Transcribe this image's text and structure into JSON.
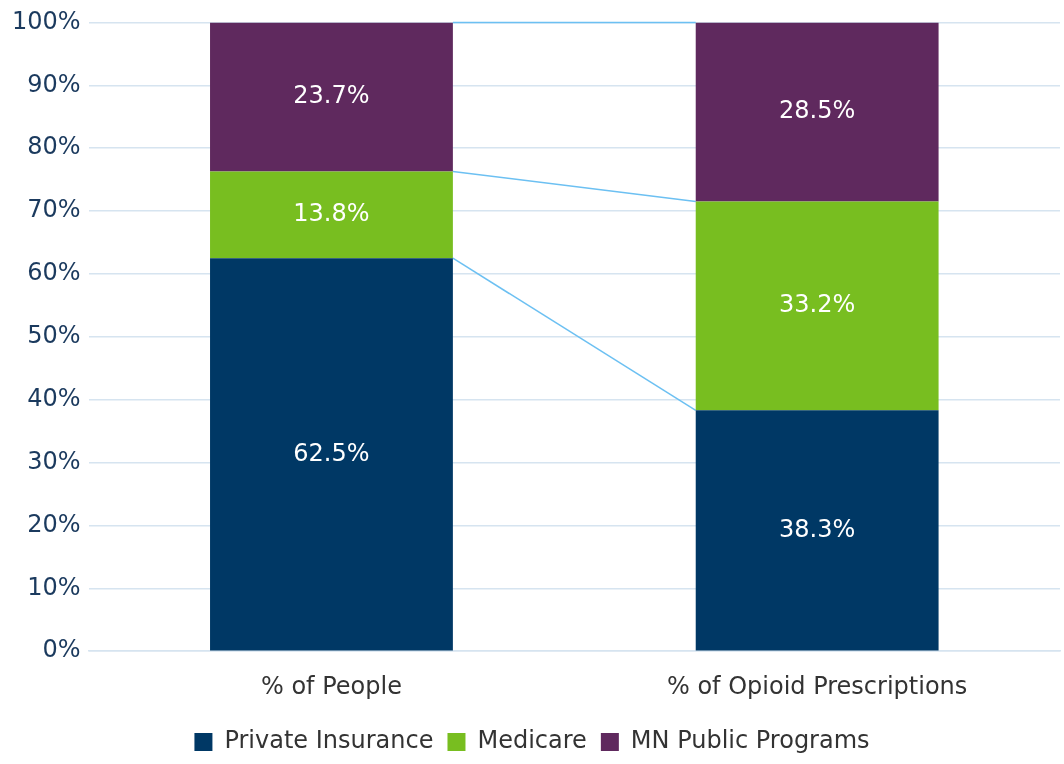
{
  "chart_data": {
    "type": "bar",
    "stacked": true,
    "categories": [
      "% of People",
      "% of Opioid Prescriptions"
    ],
    "series": [
      {
        "name": "Private Insurance",
        "color": "#003865",
        "values": [
          62.5,
          38.3
        ],
        "value_labels": [
          "62.5%",
          "38.3%"
        ]
      },
      {
        "name": "Medicare",
        "color": "#78be20",
        "values": [
          13.8,
          33.2
        ],
        "value_labels": [
          "13.8%",
          "33.2%"
        ]
      },
      {
        "name": "MN Public Programs",
        "color": "#5f295e",
        "values": [
          23.7,
          28.5
        ],
        "value_labels": [
          "23.7%",
          "28.5%"
        ]
      }
    ],
    "ylim": [
      0,
      100
    ],
    "yticks": [
      {
        "value": 0,
        "label": "0%"
      },
      {
        "value": 10,
        "label": "10%"
      },
      {
        "value": 20,
        "label": "20%"
      },
      {
        "value": 30,
        "label": "30%"
      },
      {
        "value": 40,
        "label": "40%"
      },
      {
        "value": 50,
        "label": "50%"
      },
      {
        "value": 60,
        "label": "60%"
      },
      {
        "value": 70,
        "label": "70%"
      },
      {
        "value": 80,
        "label": "80%"
      },
      {
        "value": 90,
        "label": "90%"
      },
      {
        "value": 100,
        "label": "100%"
      }
    ],
    "grid": "y",
    "legend": "bottom"
  }
}
